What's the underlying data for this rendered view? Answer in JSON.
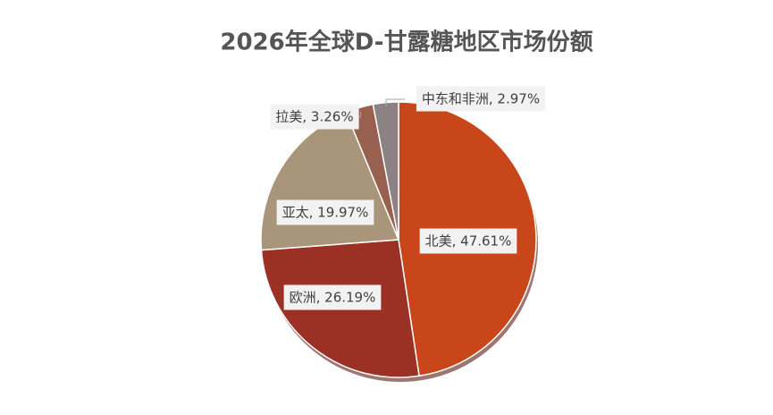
{
  "chart_data": {
    "type": "pie",
    "title": "2026年全球D-甘露糖地区市场份额",
    "values": [
      47.61,
      26.19,
      19.97,
      3.26,
      2.97
    ],
    "value_labels": [
      "北美, 47.61%",
      "欧洲, 26.19%",
      "亚太, 19.97%",
      "拉美, 3.26%",
      "中东和非洲, 2.97%"
    ],
    "colors": [
      "#c9461b",
      "#9b3125",
      "#a8957a",
      "#98604f",
      "#8c8283"
    ]
  }
}
